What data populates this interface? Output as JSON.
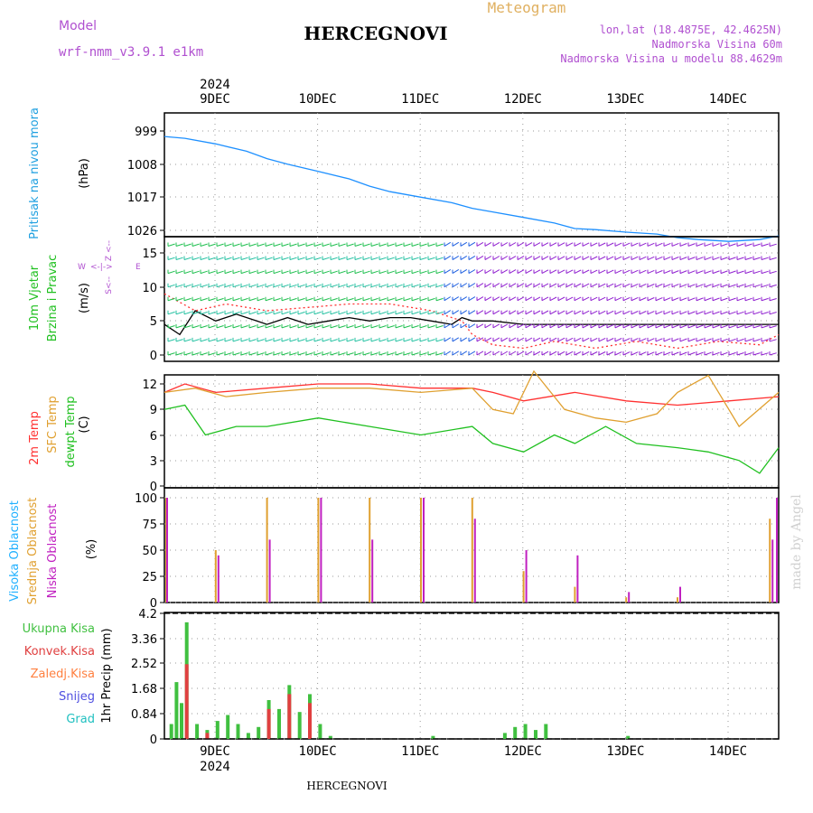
{
  "header": {
    "model_label": "Model",
    "model_name": "wrf-nmm_v3.9.1 e1km",
    "title": "HERCEGNOVI",
    "subtitle": "Meteogram",
    "lonlat": "lon,lat (18.4875E, 42.4625N)",
    "elevation": "Nadmorska Visina 60m",
    "model_elevation": "Nadmorska Visina u modelu 88.4629m"
  },
  "footer": {
    "station": "HERCEGNOVI",
    "watermark": "made by Angel"
  },
  "time_axis": {
    "year": "2024",
    "days": [
      "9DEC",
      "10DEC",
      "11DEC",
      "12DEC",
      "13DEC",
      "14DEC"
    ]
  },
  "colors": {
    "pressure": "#1e90ff",
    "wind_speed": "#000000",
    "gust": "#ff3030",
    "temp2m": "#ff3030",
    "sfc_temp": "#e0a030",
    "dewpoint": "#20c020",
    "high_cloud": "#20b0ff",
    "mid_cloud": "#e0a030",
    "low_cloud": "#c020c0",
    "total_precip": "#40c040",
    "conv_precip": "#e04040",
    "frz_precip": "#ff8040",
    "snow": "#5050e0",
    "graupel": "#20c0c0"
  },
  "chart_data": [
    {
      "type": "line",
      "ylabel_name": "Pritisak na nivou mora",
      "ylabel_unit": "(hPa)",
      "yticks": [
        "999",
        "1008",
        "1017",
        "1026"
      ],
      "ylim": [
        996,
        1030
      ],
      "grid": true,
      "series": [
        {
          "values_x_days": [
            0,
            0.2,
            0.5,
            0.8,
            1.0,
            1.2,
            1.5,
            1.8,
            2.0,
            2.2,
            2.5,
            2.8,
            3.0,
            3.2,
            3.5,
            3.8,
            4.0,
            4.2,
            4.5,
            4.8,
            5.0,
            5.2,
            5.5,
            5.8,
            6.0
          ],
          "values": [
            1000.5,
            1001,
            1002.5,
            1004.5,
            1006.5,
            1008,
            1010,
            1012,
            1014,
            1015.5,
            1017,
            1018.5,
            1020,
            1021,
            1022.5,
            1024,
            1025.5,
            1025.8,
            1026.5,
            1027,
            1028,
            1028.5,
            1029,
            1028.5,
            1027.5
          ]
        }
      ]
    },
    {
      "type": "line",
      "ylabel_name": "10m Vjetar Brzina i Pravac",
      "ylabel_unit": "(m/s)",
      "compass": [
        "Z",
        "W",
        "E",
        "S"
      ],
      "yticks": [
        "0",
        "5",
        "10",
        "15"
      ],
      "ylim": [
        -1,
        17
      ],
      "grid": true,
      "series": [
        {
          "name": "wind speed",
          "values_x_days": [
            0,
            0.15,
            0.3,
            0.5,
            0.7,
            0.9,
            1.0,
            1.2,
            1.4,
            1.6,
            1.8,
            2.0,
            2.2,
            2.4,
            2.6,
            2.8,
            2.9,
            3.0,
            3.2,
            3.5,
            3.8,
            4.0,
            4.5,
            5.0,
            5.5,
            6.0
          ],
          "values": [
            4.5,
            3.0,
            6.5,
            5.0,
            6.0,
            5.0,
            4.5,
            5.5,
            4.5,
            5.0,
            5.5,
            5.0,
            5.5,
            5.5,
            5.0,
            4.5,
            5.5,
            5.0,
            5.0,
            4.5,
            4.5,
            4.5,
            4.5,
            4.5,
            4.5,
            4.5
          ]
        },
        {
          "name": "gust",
          "values_x_days": [
            0,
            0.3,
            0.6,
            1.0,
            1.4,
            1.8,
            2.2,
            2.6,
            2.9,
            3.0,
            3.2,
            3.5,
            3.8,
            4.2,
            4.6,
            5.0,
            5.4,
            5.8,
            6.0
          ],
          "values": [
            9,
            6.5,
            7.5,
            6.5,
            7,
            7.5,
            7.5,
            6.5,
            5,
            3,
            1.5,
            1,
            2,
            1,
            2,
            1,
            2,
            1.5,
            3
          ]
        }
      ]
    },
    {
      "type": "line",
      "ylabel_names": [
        "2m Temp",
        "SFC Temp",
        "dewpt Temp"
      ],
      "ylabel_unit": "(C)",
      "yticks": [
        "0",
        "3",
        "6",
        "9",
        "12"
      ],
      "ylim": [
        0,
        14
      ],
      "grid": true,
      "series": [
        {
          "name": "2m Temp",
          "values_x_days": [
            0,
            0.2,
            0.5,
            1.0,
            1.5,
            2.0,
            2.5,
            3.0,
            3.2,
            3.5,
            4.0,
            4.5,
            5.0,
            5.5,
            6.0
          ],
          "values": [
            11,
            12,
            11,
            11.5,
            12,
            12,
            11.5,
            11.5,
            11,
            10,
            11,
            10,
            9.5,
            10,
            10.5
          ]
        },
        {
          "name": "SFC Temp",
          "values_x_days": [
            0,
            0.3,
            0.6,
            1.0,
            1.5,
            2.0,
            2.5,
            3.0,
            3.2,
            3.4,
            3.6,
            3.9,
            4.2,
            4.5,
            4.8,
            5.0,
            5.3,
            5.6,
            6.0
          ],
          "values": [
            11,
            11.5,
            10.5,
            11,
            11.5,
            11.5,
            11,
            11.5,
            9,
            8.5,
            13.5,
            9,
            8,
            7.5,
            8.5,
            11,
            13,
            7,
            11
          ]
        },
        {
          "name": "dewpt Temp",
          "values_x_days": [
            0,
            0.2,
            0.4,
            0.7,
            1.0,
            1.5,
            2.0,
            2.5,
            3.0,
            3.2,
            3.5,
            3.8,
            4.0,
            4.3,
            4.6,
            5.0,
            5.3,
            5.6,
            5.8,
            6.0
          ],
          "values": [
            9,
            9.5,
            6,
            7,
            7,
            8,
            7,
            6,
            7,
            5,
            4,
            6,
            5,
            7,
            5,
            4.5,
            4,
            3,
            1.5,
            4.5
          ]
        }
      ]
    },
    {
      "type": "bar",
      "ylabel_names": [
        "Visoka Oblacnost",
        "Srednja Oblacnost",
        "Niska Oblacnost"
      ],
      "ylabel_unit": "(%)",
      "yticks": [
        "0",
        "25",
        "50",
        "75",
        "100"
      ],
      "ylim": [
        0,
        100
      ],
      "grid": true,
      "series": [
        {
          "name": "Srednja Oblacnost",
          "values_x_days": [
            0,
            0.5,
            1.0,
            1.5,
            2.0,
            2.5,
            3.0,
            3.5,
            4.0,
            4.5,
            5.0,
            5.5,
            5.9,
            6.0
          ],
          "values": [
            100,
            50,
            100,
            100,
            100,
            100,
            100,
            30,
            15,
            5,
            5,
            0,
            80,
            100
          ]
        },
        {
          "name": "Niska Oblacnost",
          "values_x_days": [
            0,
            0.5,
            1.0,
            1.5,
            2.0,
            2.5,
            3.0,
            3.5,
            4.0,
            4.5,
            5.0,
            5.5,
            5.9,
            6.0
          ],
          "values": [
            100,
            45,
            60,
            100,
            60,
            100,
            80,
            50,
            45,
            10,
            15,
            0,
            60,
            100
          ]
        }
      ]
    },
    {
      "type": "bar",
      "ylabel_name": "1hr Precip",
      "ylabel_unit": "(mm)",
      "yticks": [
        "0",
        "0.84",
        "1.68",
        "2.52",
        "3.36",
        "4.2"
      ],
      "ylim": [
        0,
        4.2
      ],
      "grid": true,
      "legend": [
        "Ukupna Kisa",
        "Konvek.Kisa",
        "Zaledj.Kisa",
        "Snijeg",
        "Grad"
      ],
      "series": [
        {
          "name": "Ukupna Kisa",
          "values_x_days": [
            0.05,
            0.1,
            0.15,
            0.2,
            0.3,
            0.4,
            0.5,
            0.6,
            0.7,
            0.8,
            0.9,
            1.0,
            1.1,
            1.2,
            1.3,
            1.4,
            1.5,
            1.6,
            2.6,
            3.3,
            3.4,
            3.5,
            3.6,
            3.7,
            4.5
          ],
          "values": [
            0.5,
            1.9,
            1.2,
            3.9,
            0.5,
            0.3,
            0.6,
            0.8,
            0.5,
            0.2,
            0.4,
            1.3,
            1.0,
            1.8,
            0.9,
            1.5,
            0.5,
            0.1,
            0.1,
            0.2,
            0.4,
            0.5,
            0.3,
            0.5,
            0.1
          ]
        },
        {
          "name": "Konvek.Kisa",
          "values_x_days": [
            0.2,
            0.4,
            1.0,
            1.2,
            1.4
          ],
          "values": [
            2.5,
            0.2,
            1.0,
            1.5,
            1.2
          ]
        }
      ]
    }
  ]
}
